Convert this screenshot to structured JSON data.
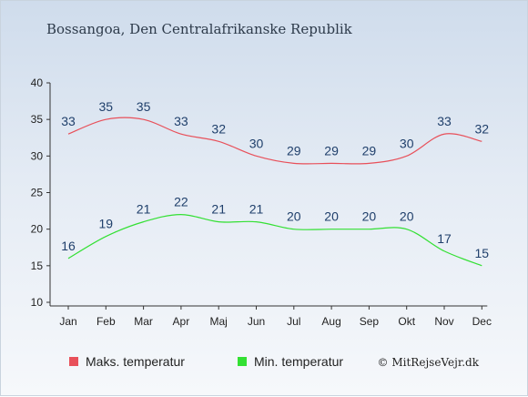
{
  "chart_data": {
    "type": "line",
    "title": "Bossangoa, Den Centralafrikanske Republik",
    "categories": [
      "Jan",
      "Feb",
      "Mar",
      "Apr",
      "Maj",
      "Jun",
      "Jul",
      "Aug",
      "Sep",
      "Okt",
      "Nov",
      "Dec"
    ],
    "series": [
      {
        "name": "Maks. temperatur",
        "color": "#e8505a",
        "values": [
          33,
          35,
          35,
          33,
          32,
          30,
          29,
          29,
          29,
          30,
          33,
          32
        ]
      },
      {
        "name": "Min. temperatur",
        "color": "#33e033",
        "values": [
          16,
          19,
          21,
          22,
          21,
          21,
          20,
          20,
          20,
          20,
          17,
          15
        ]
      }
    ],
    "ylim": [
      10,
      40
    ],
    "yticks": [
      10,
      15,
      20,
      25,
      30,
      35,
      40
    ],
    "legend_position": "bottom",
    "credit": "© MitRejseVejr.dk"
  }
}
